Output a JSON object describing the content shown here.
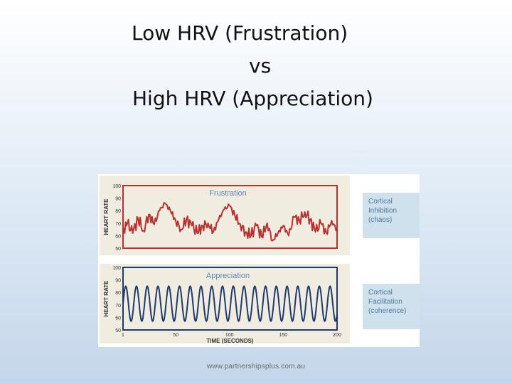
{
  "slide": {
    "title_line1": "Low HRV (Frustration)",
    "title_line2": "vs",
    "title_line3": "High HRV (Appreciation)",
    "credit": "www.partnershipsplus.com.au"
  },
  "chart_data": [
    {
      "type": "line",
      "title": "Frustration",
      "ylabel": "HEART RATE",
      "xlabel": "",
      "ylim": [
        50,
        100
      ],
      "yticks": [
        "100",
        "90",
        "80",
        "70",
        "60",
        "50"
      ],
      "xlim": [
        1,
        200
      ],
      "color": "#b83030",
      "annotation": [
        "Cortical",
        "Inhibition",
        "(chaos)"
      ],
      "x": [
        1,
        5,
        10,
        15,
        20,
        25,
        30,
        35,
        40,
        45,
        50,
        55,
        60,
        65,
        70,
        75,
        80,
        85,
        90,
        95,
        100,
        105,
        110,
        115,
        120,
        125,
        130,
        135,
        140,
        145,
        150,
        155,
        160,
        165,
        170,
        175,
        180,
        185,
        190,
        195,
        200
      ],
      "y": [
        63,
        70,
        62,
        74,
        64,
        77,
        69,
        80,
        86,
        80,
        72,
        65,
        73,
        68,
        62,
        68,
        70,
        63,
        73,
        81,
        84,
        76,
        69,
        63,
        60,
        68,
        59,
        70,
        56,
        62,
        68,
        60,
        75,
        72,
        79,
        73,
        63,
        70,
        62,
        72,
        64
      ]
    },
    {
      "type": "line",
      "title": "Appreciation",
      "ylabel": "HEART RATE",
      "xlabel": "TIME (SECONDS)",
      "ylim": [
        50,
        100
      ],
      "yticks": [
        "100",
        "90",
        "80",
        "70",
        "60",
        "50"
      ],
      "xlim": [
        1,
        200
      ],
      "xticks": [
        "1",
        "50",
        "100",
        "150",
        "200"
      ],
      "color": "#1f3a6b",
      "annotation": [
        "Cortical",
        "Facilitation",
        "(coherence)"
      ],
      "wave": {
        "period_seconds": 10,
        "min": 57,
        "max": 85
      }
    }
  ]
}
